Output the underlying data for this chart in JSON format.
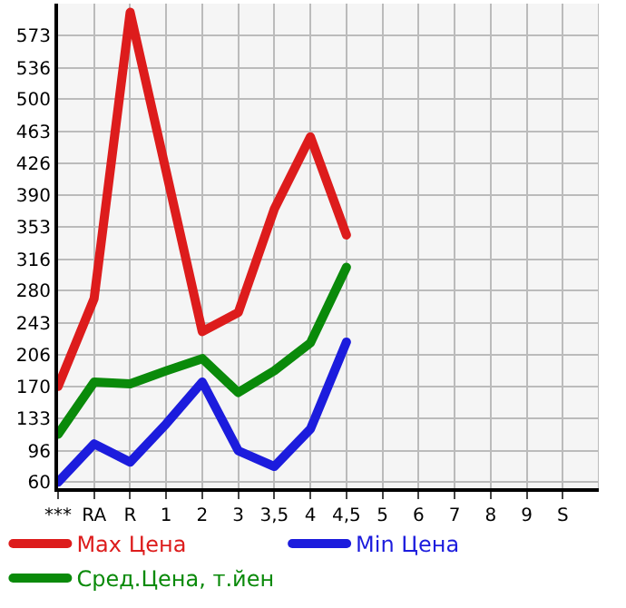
{
  "chart_data": {
    "type": "line",
    "categories": [
      "***",
      "RA",
      "R",
      "1",
      "2",
      "3",
      "3,5",
      "4",
      "4,5",
      "5",
      "6",
      "7",
      "8",
      "9",
      "S"
    ],
    "series": [
      {
        "name": "Max Цена",
        "color": "#dd1c1c",
        "values": [
          170,
          271,
          600,
          417,
          233,
          255,
          374,
          457,
          344,
          null,
          null,
          null,
          null,
          null,
          null
        ]
      },
      {
        "name": "Min Цена",
        "color": "#1c1cdd",
        "values": [
          60,
          104,
          83,
          127,
          175,
          96,
          78,
          121,
          221,
          null,
          null,
          null,
          null,
          null,
          null
        ]
      },
      {
        "name": "Сред.Цена, т.йен",
        "color": "#0a8a0a",
        "values": [
          115,
          175,
          173,
          188,
          202,
          163,
          188,
          220,
          307,
          null,
          null,
          null,
          null,
          null,
          null
        ]
      }
    ],
    "ylim": [
      53,
      610
    ],
    "yticks": [
      60,
      96,
      133,
      170,
      206,
      243,
      280,
      316,
      353,
      390,
      426,
      463,
      500,
      536,
      573
    ],
    "grid": true,
    "legend": "bottom",
    "marker": "none",
    "line_style": "solid"
  }
}
